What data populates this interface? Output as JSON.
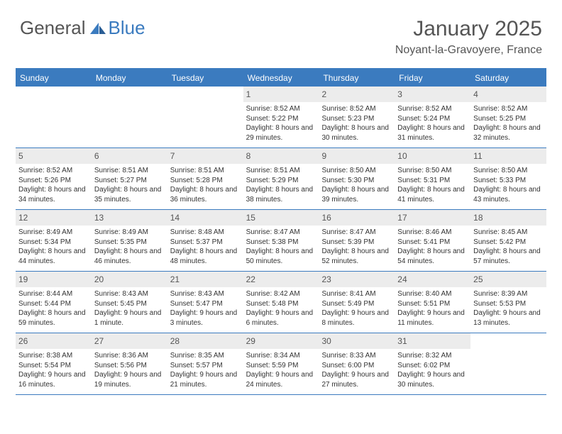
{
  "brand": {
    "general": "General",
    "blue": "Blue"
  },
  "title": "January 2025",
  "location": "Noyant-la-Gravoyere, France",
  "colors": {
    "accent": "#3b7bbf",
    "daynum_bg": "#ececec",
    "text": "#333333",
    "muted": "#555555",
    "background": "#ffffff"
  },
  "dayNames": [
    "Sunday",
    "Monday",
    "Tuesday",
    "Wednesday",
    "Thursday",
    "Friday",
    "Saturday"
  ],
  "weeks": [
    [
      null,
      null,
      null,
      {
        "n": "1",
        "sunrise": "8:52 AM",
        "sunset": "5:22 PM",
        "daylight": "8 hours and 29 minutes."
      },
      {
        "n": "2",
        "sunrise": "8:52 AM",
        "sunset": "5:23 PM",
        "daylight": "8 hours and 30 minutes."
      },
      {
        "n": "3",
        "sunrise": "8:52 AM",
        "sunset": "5:24 PM",
        "daylight": "8 hours and 31 minutes."
      },
      {
        "n": "4",
        "sunrise": "8:52 AM",
        "sunset": "5:25 PM",
        "daylight": "8 hours and 32 minutes."
      }
    ],
    [
      {
        "n": "5",
        "sunrise": "8:52 AM",
        "sunset": "5:26 PM",
        "daylight": "8 hours and 34 minutes."
      },
      {
        "n": "6",
        "sunrise": "8:51 AM",
        "sunset": "5:27 PM",
        "daylight": "8 hours and 35 minutes."
      },
      {
        "n": "7",
        "sunrise": "8:51 AM",
        "sunset": "5:28 PM",
        "daylight": "8 hours and 36 minutes."
      },
      {
        "n": "8",
        "sunrise": "8:51 AM",
        "sunset": "5:29 PM",
        "daylight": "8 hours and 38 minutes."
      },
      {
        "n": "9",
        "sunrise": "8:50 AM",
        "sunset": "5:30 PM",
        "daylight": "8 hours and 39 minutes."
      },
      {
        "n": "10",
        "sunrise": "8:50 AM",
        "sunset": "5:31 PM",
        "daylight": "8 hours and 41 minutes."
      },
      {
        "n": "11",
        "sunrise": "8:50 AM",
        "sunset": "5:33 PM",
        "daylight": "8 hours and 43 minutes."
      }
    ],
    [
      {
        "n": "12",
        "sunrise": "8:49 AM",
        "sunset": "5:34 PM",
        "daylight": "8 hours and 44 minutes."
      },
      {
        "n": "13",
        "sunrise": "8:49 AM",
        "sunset": "5:35 PM",
        "daylight": "8 hours and 46 minutes."
      },
      {
        "n": "14",
        "sunrise": "8:48 AM",
        "sunset": "5:37 PM",
        "daylight": "8 hours and 48 minutes."
      },
      {
        "n": "15",
        "sunrise": "8:47 AM",
        "sunset": "5:38 PM",
        "daylight": "8 hours and 50 minutes."
      },
      {
        "n": "16",
        "sunrise": "8:47 AM",
        "sunset": "5:39 PM",
        "daylight": "8 hours and 52 minutes."
      },
      {
        "n": "17",
        "sunrise": "8:46 AM",
        "sunset": "5:41 PM",
        "daylight": "8 hours and 54 minutes."
      },
      {
        "n": "18",
        "sunrise": "8:45 AM",
        "sunset": "5:42 PM",
        "daylight": "8 hours and 57 minutes."
      }
    ],
    [
      {
        "n": "19",
        "sunrise": "8:44 AM",
        "sunset": "5:44 PM",
        "daylight": "8 hours and 59 minutes."
      },
      {
        "n": "20",
        "sunrise": "8:43 AM",
        "sunset": "5:45 PM",
        "daylight": "9 hours and 1 minute."
      },
      {
        "n": "21",
        "sunrise": "8:43 AM",
        "sunset": "5:47 PM",
        "daylight": "9 hours and 3 minutes."
      },
      {
        "n": "22",
        "sunrise": "8:42 AM",
        "sunset": "5:48 PM",
        "daylight": "9 hours and 6 minutes."
      },
      {
        "n": "23",
        "sunrise": "8:41 AM",
        "sunset": "5:49 PM",
        "daylight": "9 hours and 8 minutes."
      },
      {
        "n": "24",
        "sunrise": "8:40 AM",
        "sunset": "5:51 PM",
        "daylight": "9 hours and 11 minutes."
      },
      {
        "n": "25",
        "sunrise": "8:39 AM",
        "sunset": "5:53 PM",
        "daylight": "9 hours and 13 minutes."
      }
    ],
    [
      {
        "n": "26",
        "sunrise": "8:38 AM",
        "sunset": "5:54 PM",
        "daylight": "9 hours and 16 minutes."
      },
      {
        "n": "27",
        "sunrise": "8:36 AM",
        "sunset": "5:56 PM",
        "daylight": "9 hours and 19 minutes."
      },
      {
        "n": "28",
        "sunrise": "8:35 AM",
        "sunset": "5:57 PM",
        "daylight": "9 hours and 21 minutes."
      },
      {
        "n": "29",
        "sunrise": "8:34 AM",
        "sunset": "5:59 PM",
        "daylight": "9 hours and 24 minutes."
      },
      {
        "n": "30",
        "sunrise": "8:33 AM",
        "sunset": "6:00 PM",
        "daylight": "9 hours and 27 minutes."
      },
      {
        "n": "31",
        "sunrise": "8:32 AM",
        "sunset": "6:02 PM",
        "daylight": "9 hours and 30 minutes."
      },
      null
    ]
  ],
  "labels": {
    "sunrise": "Sunrise: ",
    "sunset": "Sunset: ",
    "daylight": "Daylight: "
  }
}
